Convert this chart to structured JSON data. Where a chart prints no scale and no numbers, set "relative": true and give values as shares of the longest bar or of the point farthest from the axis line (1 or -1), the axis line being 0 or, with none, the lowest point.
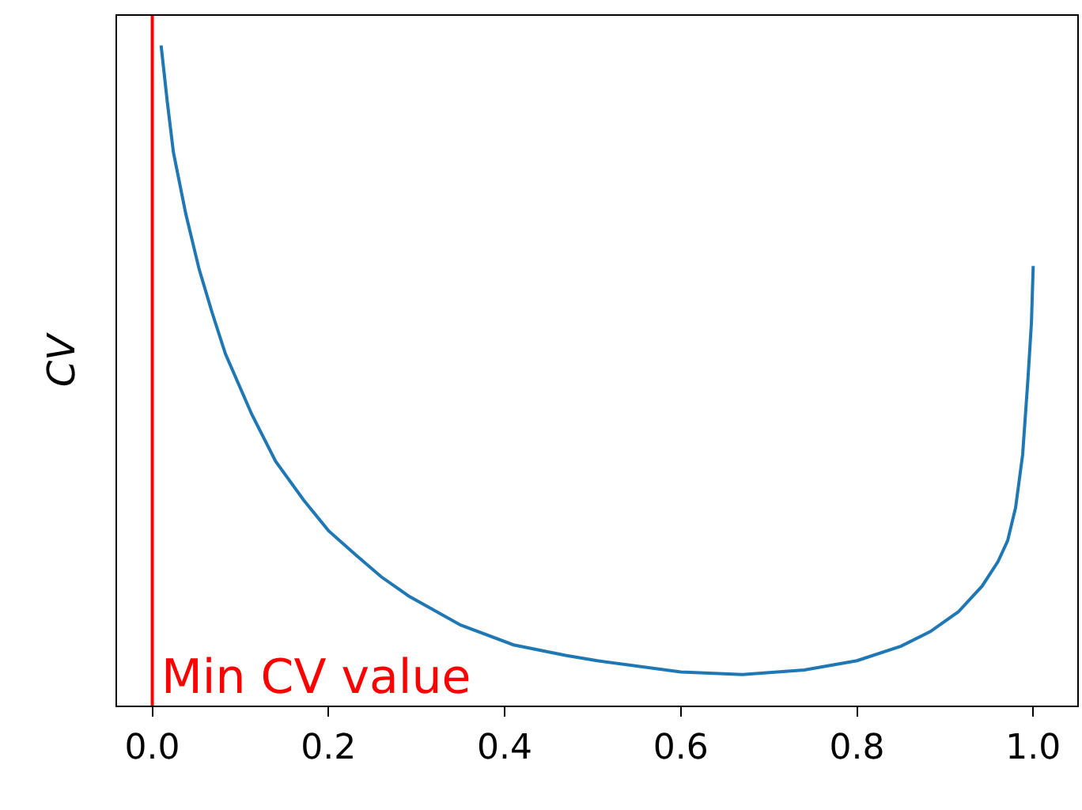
{
  "chart_data": {
    "type": "line",
    "relative": true,
    "ylabel": "CV",
    "xlim": [
      -0.04,
      1.05
    ],
    "xticks": [
      {
        "value": 0,
        "label": "0.0"
      },
      0.2,
      0.4,
      0.6,
      0.8,
      {
        "value": 1,
        "label": "1.0"
      }
    ],
    "marker": "none",
    "line_style": "solid",
    "series": [
      {
        "color": "#1f77b4",
        "x": [
          0.01,
          0.017,
          0.024,
          0.038,
          0.053,
          0.068,
          0.083,
          0.113,
          0.14,
          0.172,
          0.2,
          0.232,
          0.26,
          0.291,
          0.35,
          0.41,
          0.469,
          0.505,
          0.6,
          0.67,
          0.74,
          0.8,
          0.85,
          0.883,
          0.915,
          0.942,
          0.96,
          0.971,
          0.98,
          0.988,
          0.994,
          0.998,
          1.0
        ],
        "values": [
          1.0,
          0.915,
          0.838,
          0.745,
          0.662,
          0.595,
          0.533,
          0.441,
          0.37,
          0.311,
          0.265,
          0.227,
          0.195,
          0.166,
          0.122,
          0.092,
          0.076,
          0.068,
          0.051,
          0.047,
          0.054,
          0.068,
          0.09,
          0.112,
          0.142,
          0.181,
          0.218,
          0.25,
          0.3,
          0.38,
          0.494,
          0.58,
          0.666
        ]
      }
    ],
    "ref_lines": [
      {
        "axis": "x",
        "value": 0.0,
        "label": "Min CV value",
        "color": "#ff0000",
        "line_style": "solid"
      }
    ]
  }
}
